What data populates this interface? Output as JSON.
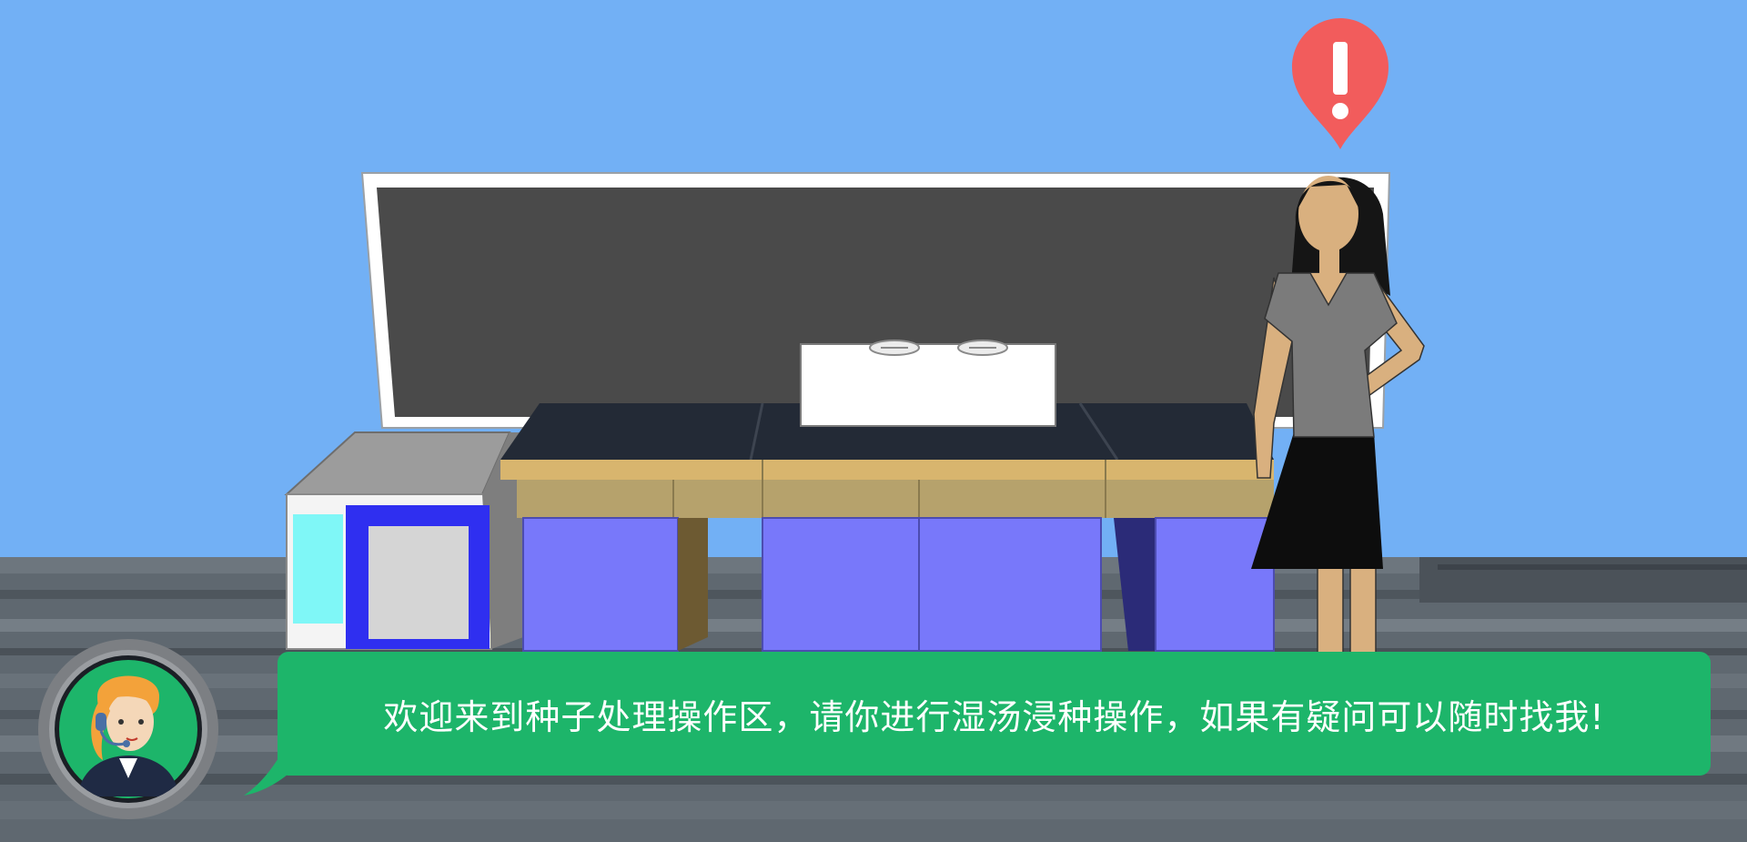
{
  "dialog": {
    "message": "欢迎来到种子处理操作区，请你进行湿汤浸种操作，如果有疑问可以随时找我!"
  },
  "npc": {
    "alert_icon": "exclamation-marker-icon"
  },
  "guide": {
    "avatar_icon": "headset-operator-avatar-icon"
  },
  "colors": {
    "sky": "#72b0f5",
    "bubble": "#1db56a",
    "alert": "#f25c5c",
    "board": "#4a4a4a",
    "cabinet": "#7878fa"
  }
}
